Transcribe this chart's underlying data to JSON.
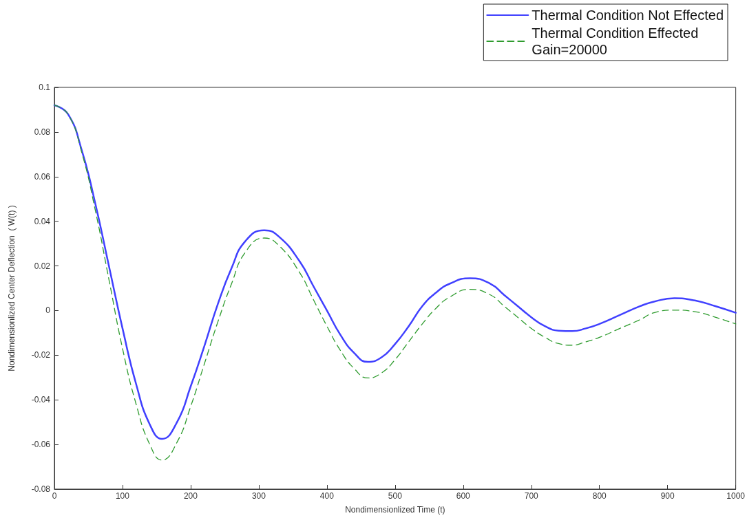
{
  "chart_data": {
    "type": "line",
    "xlabel": "Nondimensionlized Time (t)",
    "ylabel": "Nondimensionlized Center Deflection  ( W(t) )",
    "x": [
      0,
      20,
      40,
      60,
      80,
      100,
      120,
      140,
      158,
      180,
      200,
      220,
      240,
      260,
      280,
      308,
      330,
      360,
      380,
      400,
      420,
      440,
      460,
      480,
      500,
      520,
      540,
      560,
      580,
      610,
      640,
      660,
      680,
      700,
      720,
      740,
      760,
      780,
      800,
      830,
      860,
      880,
      910,
      940,
      970,
      1000
    ],
    "series": [
      {
        "name": "Thermal Condition Not Effected",
        "color": "#4040ff",
        "line_style": "solid",
        "values": [
          0.092,
          0.088,
          0.072,
          0.048,
          0.02,
          -0.008,
          -0.033,
          -0.051,
          -0.0575,
          -0.05,
          -0.034,
          -0.016,
          0.003,
          0.019,
          0.031,
          0.036,
          0.033,
          0.022,
          0.011,
          0.0,
          -0.011,
          -0.019,
          -0.023,
          -0.021,
          -0.015,
          -0.007,
          0.002,
          0.008,
          0.012,
          0.0145,
          0.012,
          0.007,
          0.002,
          -0.003,
          -0.007,
          -0.009,
          -0.0092,
          -0.008,
          -0.006,
          -0.002,
          0.002,
          0.004,
          0.0055,
          0.0045,
          0.002,
          -0.001
        ]
      },
      {
        "name": "Thermal Condition Effected\nGain=20000",
        "color": "#2e9b2e",
        "line_style": "dashed",
        "values": [
          0.092,
          0.088,
          0.071,
          0.045,
          0.014,
          -0.017,
          -0.042,
          -0.06,
          -0.067,
          -0.059,
          -0.043,
          -0.024,
          -0.005,
          0.012,
          0.026,
          0.0325,
          0.029,
          0.017,
          0.005,
          -0.007,
          -0.018,
          -0.026,
          -0.0302,
          -0.028,
          -0.022,
          -0.014,
          -0.006,
          0.001,
          0.006,
          0.0095,
          0.007,
          0.002,
          -0.003,
          -0.008,
          -0.012,
          -0.0148,
          -0.0155,
          -0.014,
          -0.012,
          -0.008,
          -0.004,
          -0.001,
          0.0002,
          -0.0005,
          -0.003,
          -0.006
        ]
      }
    ],
    "xlim": [
      0,
      1000
    ],
    "xticks": [
      0,
      100,
      200,
      300,
      400,
      500,
      600,
      700,
      800,
      900,
      1000
    ],
    "ylim": [
      -0.08,
      0.1
    ],
    "yticks": [
      -0.08,
      -0.06,
      -0.04,
      -0.02,
      0,
      0.02,
      0.04,
      0.06,
      0.08,
      0.1
    ],
    "grid": false,
    "legend": "top right",
    "marker": "none"
  }
}
